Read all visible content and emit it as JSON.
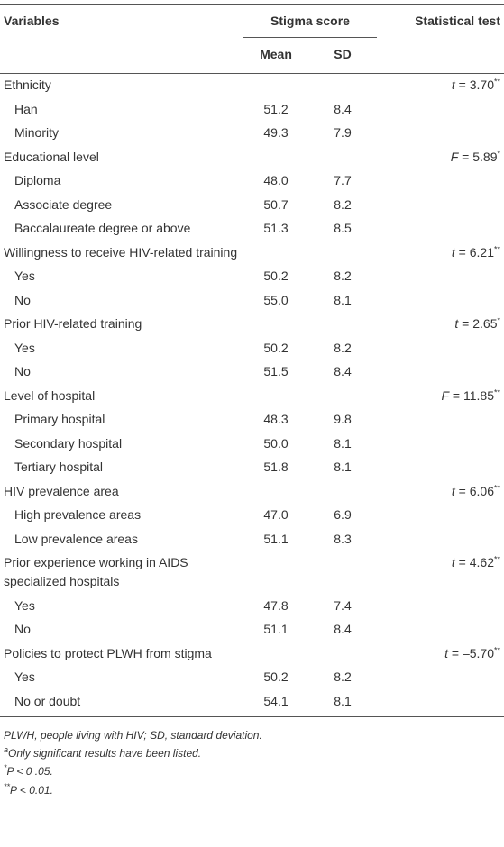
{
  "header": {
    "variables": "Variables",
    "stigma_score": "Stigma score",
    "mean": "Mean",
    "sd": "SD",
    "statistical_test": "Statistical test"
  },
  "groups": [
    {
      "label": "Ethnicity",
      "test": {
        "symbol": "t",
        "rest": " = 3.70",
        "sig": "**"
      },
      "items": [
        {
          "label": "Han",
          "mean": "51.2",
          "sd": "8.4"
        },
        {
          "label": "Minority",
          "mean": "49.3",
          "sd": "7.9"
        }
      ]
    },
    {
      "label": "Educational level",
      "test": {
        "symbol": "F",
        "rest": " = 5.89",
        "sig": "*"
      },
      "items": [
        {
          "label": "Diploma",
          "mean": "48.0",
          "sd": "7.7"
        },
        {
          "label": "Associate degree",
          "mean": "50.7",
          "sd": "8.2"
        },
        {
          "label": "Baccalaureate degree or above",
          "mean": "51.3",
          "sd": "8.5"
        }
      ]
    },
    {
      "label": "Willingness to receive HIV-related training",
      "test": {
        "symbol": "t",
        "rest": " = 6.21",
        "sig": "**"
      },
      "items": [
        {
          "label": "Yes",
          "mean": "50.2",
          "sd": "8.2"
        },
        {
          "label": "No",
          "mean": "55.0",
          "sd": "8.1"
        }
      ]
    },
    {
      "label": "Prior HIV-related training",
      "test": {
        "symbol": "t",
        "rest": " = 2.65",
        "sig": "*"
      },
      "items": [
        {
          "label": "Yes",
          "mean": "50.2",
          "sd": "8.2"
        },
        {
          "label": "No",
          "mean": "51.5",
          "sd": "8.4"
        }
      ]
    },
    {
      "label": "Level of hospital",
      "test": {
        "symbol": "F",
        "rest": " = 11.85",
        "sig": "**"
      },
      "items": [
        {
          "label": "Primary hospital",
          "mean": "48.3",
          "sd": "9.8"
        },
        {
          "label": "Secondary hospital",
          "mean": "50.0",
          "sd": "8.1"
        },
        {
          "label": "Tertiary hospital",
          "mean": "51.8",
          "sd": "8.1"
        }
      ]
    },
    {
      "label": "HIV prevalence area",
      "test": {
        "symbol": "t",
        "rest": " = 6.06",
        "sig": "**"
      },
      "items": [
        {
          "label": "High prevalence areas",
          "mean": "47.0",
          "sd": "6.9"
        },
        {
          "label": "Low prevalence areas",
          "mean": "51.1",
          "sd": "8.3"
        }
      ]
    },
    {
      "label": "Prior experience working in AIDS specialized hospitals",
      "test": {
        "symbol": "t",
        "rest": " = 4.62",
        "sig": "**"
      },
      "items": [
        {
          "label": "Yes",
          "mean": "47.8",
          "sd": "7.4"
        },
        {
          "label": "No",
          "mean": "51.1",
          "sd": "8.4"
        }
      ]
    },
    {
      "label": "Policies to protect PLWH from stigma",
      "test": {
        "symbol": "t",
        "rest": " = –5.70",
        "sig": "**"
      },
      "items": [
        {
          "label": "Yes",
          "mean": "50.2",
          "sd": "8.2"
        },
        {
          "label": "No or doubt",
          "mean": "54.1",
          "sd": "8.1"
        }
      ]
    }
  ],
  "footnotes": [
    {
      "text": "PLWH, people living with HIV; SD, standard deviation."
    },
    {
      "sup": "a",
      "text": "Only significant results have been listed."
    },
    {
      "sup": "*",
      "text": "P < 0 .05."
    },
    {
      "sup": "**",
      "text": "P < 0.01."
    }
  ]
}
